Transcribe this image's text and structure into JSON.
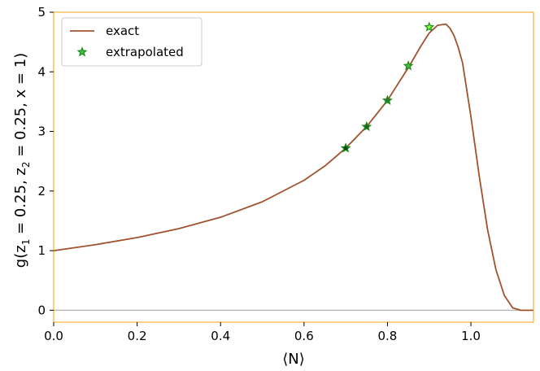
{
  "chart_data": {
    "type": "line",
    "xlabel": "⟨N⟩",
    "ylabel_parts": {
      "prefix": "g(z",
      "sub1": "1",
      "mid": " = 0.25, z",
      "sub2": "2",
      "suffix": " = 0.25, x = 1)"
    },
    "xlim": [
      0.0,
      1.15
    ],
    "ylim": [
      -0.2,
      5.0
    ],
    "xticks": [
      "0.0",
      "0.2",
      "0.4",
      "0.6",
      "0.8",
      "1.0"
    ],
    "yticks": [
      "0",
      "1",
      "2",
      "3",
      "4",
      "5"
    ],
    "grid": false,
    "legend_position": "top-left",
    "zero_line": {
      "y": 0,
      "color": "#bbbbbb"
    },
    "frame_color": "#f0a30a",
    "series": [
      {
        "name": "exact",
        "kind": "line",
        "color": "#a0522d",
        "x": [
          0.0,
          0.1,
          0.2,
          0.3,
          0.4,
          0.5,
          0.6,
          0.65,
          0.7,
          0.75,
          0.8,
          0.85,
          0.88,
          0.9,
          0.92,
          0.94,
          0.95,
          0.96,
          0.97,
          0.98,
          1.0,
          1.02,
          1.04,
          1.06,
          1.08,
          1.1,
          1.12,
          1.15
        ],
        "y": [
          1.0,
          1.1,
          1.22,
          1.37,
          1.56,
          1.82,
          2.18,
          2.42,
          2.72,
          3.08,
          3.52,
          4.07,
          4.43,
          4.65,
          4.78,
          4.8,
          4.73,
          4.6,
          4.4,
          4.15,
          3.25,
          2.25,
          1.35,
          0.68,
          0.25,
          0.04,
          0.0,
          0.0
        ]
      },
      {
        "name": "extrapolated",
        "kind": "markers",
        "marker": "star",
        "marker_edge": "#1a8f1a",
        "x": [
          0.7,
          0.75,
          0.8,
          0.85,
          0.9
        ],
        "y": [
          2.72,
          3.08,
          3.52,
          4.1,
          4.75
        ],
        "fill": [
          "#0f3d0f",
          "#1f5a1f",
          "#2e7d2e",
          "#4bb84b",
          "#7fff3f"
        ]
      }
    ]
  }
}
